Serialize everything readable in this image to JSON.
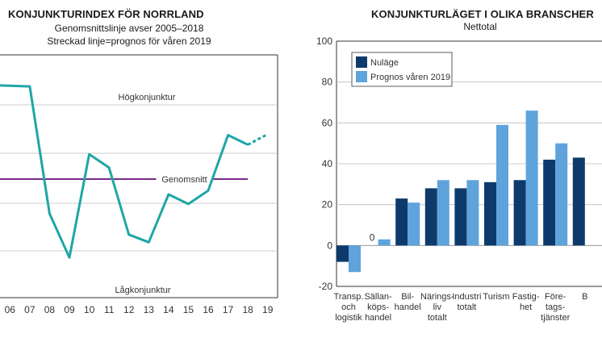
{
  "chart_data": [
    {
      "type": "line",
      "title": "KONJUNKTURINDEX FÖR NORRLAND",
      "subtitle_lines": [
        "Genomsnittslinje avser 2005–2018",
        "Streckad linje=prognos för våren 2019"
      ],
      "x": [
        "06",
        "07",
        "08",
        "09",
        "10",
        "11",
        "12",
        "13",
        "14",
        "15",
        "16",
        "17",
        "18",
        "19"
      ],
      "series": [
        {
          "name": "Konjunkturindex",
          "color": "#1fa6a6",
          "points": [
            {
              "x": 5.5,
              "y": 4.9
            },
            {
              "x": 7,
              "y": 4.85
            },
            {
              "x": 8,
              "y": -1.8
            },
            {
              "x": 9,
              "y": -4.1
            },
            {
              "x": 10,
              "y": 1.3
            },
            {
              "x": 11,
              "y": 0.6
            },
            {
              "x": 12,
              "y": -2.9
            },
            {
              "x": 13,
              "y": -3.3
            },
            {
              "x": 14,
              "y": -0.8
            },
            {
              "x": 15,
              "y": -1.3
            },
            {
              "x": 16,
              "y": -0.6
            },
            {
              "x": 17,
              "y": 2.3
            },
            {
              "x": 18,
              "y": 1.8
            }
          ]
        },
        {
          "name": "Prognos",
          "color": "#1fa6a6",
          "dashed": true,
          "points": [
            {
              "x": 18,
              "y": 1.8
            },
            {
              "x": 19,
              "y": 2.35
            }
          ]
        }
      ],
      "reference_line": {
        "label": "Genomsnitt",
        "value": 0,
        "color": "#7b2a8a",
        "x_from": 5.5,
        "x_to": 18
      },
      "annotations": {
        "top": "Högkonjunktur",
        "bottom": "Lågkonjunktur"
      },
      "ylim": [
        -6.2,
        6.5
      ],
      "xlim": [
        5.5,
        19.5
      ]
    },
    {
      "type": "bar",
      "title": "KONJUNKTURLÄGET I OLIKA BRANSCHER",
      "subtitle": "Nettotal",
      "categories": [
        [
          "Transp.",
          "och",
          "logistik"
        ],
        [
          "Sällan-",
          "köps-",
          "handel"
        ],
        [
          "Bil-",
          "handel"
        ],
        [
          "Närings-",
          "liv",
          "totalt"
        ],
        [
          "Industri",
          "totalt"
        ],
        [
          "Turism"
        ],
        [
          "Fastig-",
          "het"
        ],
        [
          "Före-",
          "tags-",
          "tjänster"
        ],
        [
          "B"
        ]
      ],
      "series": [
        {
          "name": "Nuläge",
          "color": "#0d3a6b",
          "values": [
            -8,
            0,
            23,
            28,
            28,
            31,
            32,
            42,
            43
          ]
        },
        {
          "name": "Prognos våren 2019",
          "color": "#5fa3dc",
          "values": [
            -13,
            3,
            21,
            32,
            32,
            59,
            66,
            50,
            null
          ]
        }
      ],
      "data_labels": [
        {
          "category_index": 1,
          "series": 0,
          "text": "0"
        }
      ],
      "y_ticks": [
        -20,
        0,
        20,
        40,
        60,
        80,
        100
      ],
      "ylim": [
        -20,
        100
      ],
      "legend_position": "top-left"
    }
  ]
}
